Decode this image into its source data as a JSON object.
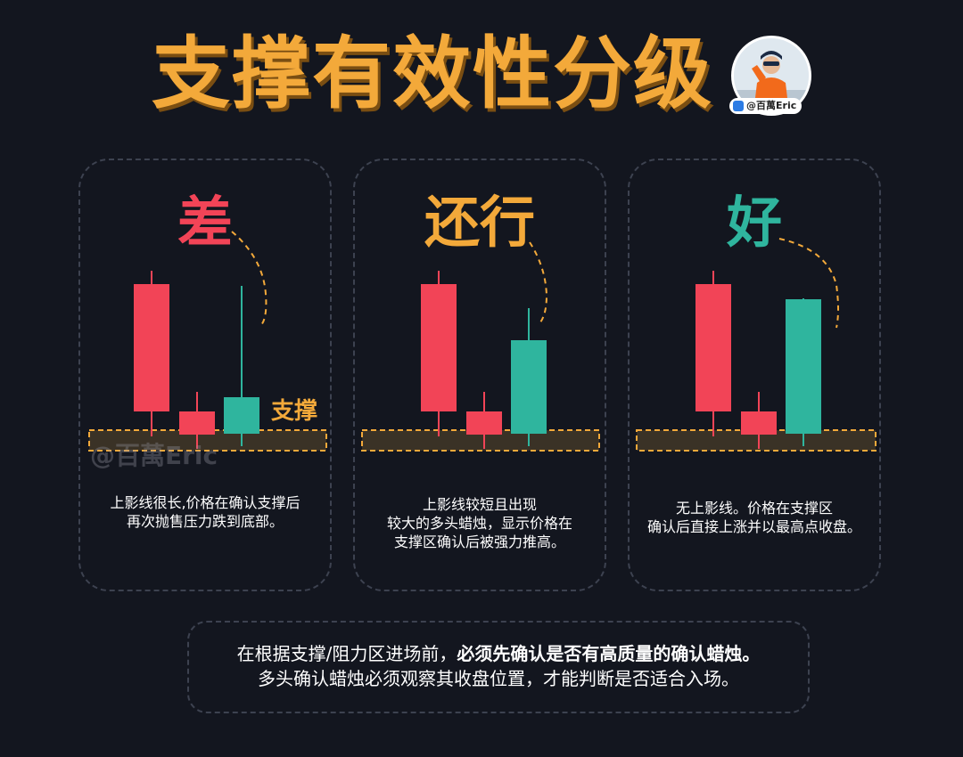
{
  "title": "支撑有效性分级",
  "avatar_tag": "@百萬Eric",
  "watermark": "@百萬Eric",
  "support_label": "支撑",
  "colors": {
    "bearish": "#f24457",
    "bullish": "#2fb59e",
    "accent": "#f3a93a",
    "background": "#13161f"
  },
  "cards": [
    {
      "grade": "差",
      "grade_color": "#f24457",
      "desc": [
        "上影线很长,价格在确认支撑后",
        "再次抛售压力跌到底部。"
      ]
    },
    {
      "grade": "还行",
      "grade_color": "#f3a93a",
      "desc": [
        "上影线较短且出现",
        "较大的多头蜡烛，显示价格在",
        "支撑区确认后被强力推高。"
      ]
    },
    {
      "grade": "好",
      "grade_color": "#2fb59e",
      "desc": [
        "无上影线。价格在支撑区",
        "确认后直接上涨并以最高点收盘。"
      ]
    }
  ],
  "note": {
    "line1_prefix": "在根据支撑/阻力区进场前，",
    "line1_bold": "必须先确认是否有高质量的确认蜡烛。",
    "line2": "多头确认蜡烛必须观察其收盘位置，才能判断是否适合入场。"
  }
}
